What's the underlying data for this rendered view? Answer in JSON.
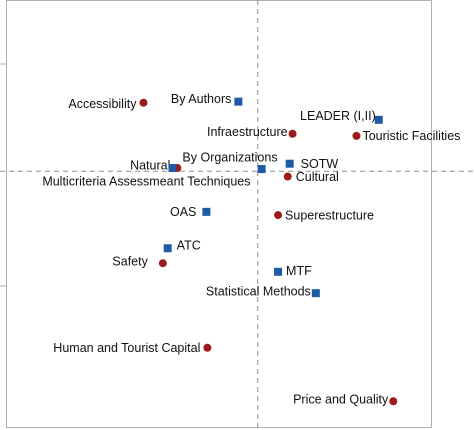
{
  "chart_data": {
    "type": "scatter",
    "title": "",
    "xlabel": "",
    "ylabel": "",
    "xlim": [
      -2.6,
      1.8
    ],
    "ylim": [
      -2.4,
      1.6
    ],
    "grid": false,
    "legend": "none",
    "colors": {
      "circle_series": "#9b1c1c",
      "square_series": "#1f5aa6",
      "axis_frame": "#b0b0b0",
      "reference_lines": "#909090"
    },
    "series": [
      {
        "marker": "circle",
        "points": [
          {
            "label": "Accessibility",
            "x": -1.18,
            "y": 0.64
          },
          {
            "label": "Infraestructure",
            "x": 0.36,
            "y": 0.35
          },
          {
            "label": "Touristic Facilities",
            "x": 1.02,
            "y": 0.33
          },
          {
            "label": "Natural",
            "x": -0.83,
            "y": 0.03
          },
          {
            "label": "Cultural",
            "x": 0.31,
            "y": -0.05
          },
          {
            "label": "Superestructure",
            "x": 0.21,
            "y": -0.41
          },
          {
            "label": "Safety",
            "x": -0.98,
            "y": -0.86
          },
          {
            "label": "Human and Tourist Capital",
            "x": -0.52,
            "y": -1.65
          },
          {
            "label": "Price and Quality",
            "x": 1.4,
            "y": -2.15
          }
        ]
      },
      {
        "marker": "square",
        "points": [
          {
            "label": "By Authors",
            "x": -0.2,
            "y": 0.65
          },
          {
            "label": "LEADER (I,II)",
            "x": 1.25,
            "y": 0.48
          },
          {
            "label": "By Organizations",
            "x": 0.04,
            "y": 0.02
          },
          {
            "label": "SOTW",
            "x": 0.33,
            "y": 0.07
          },
          {
            "label": "Multicriteria Assessmeant Techniques",
            "x": -0.88,
            "y": 0.03
          },
          {
            "label": "OAS",
            "x": -0.53,
            "y": -0.38
          },
          {
            "label": "ATC",
            "x": -0.93,
            "y": -0.72
          },
          {
            "label": "MTF",
            "x": 0.21,
            "y": -0.94
          },
          {
            "label": "Statistical Methods",
            "x": 0.6,
            "y": -1.14
          }
        ]
      }
    ]
  }
}
